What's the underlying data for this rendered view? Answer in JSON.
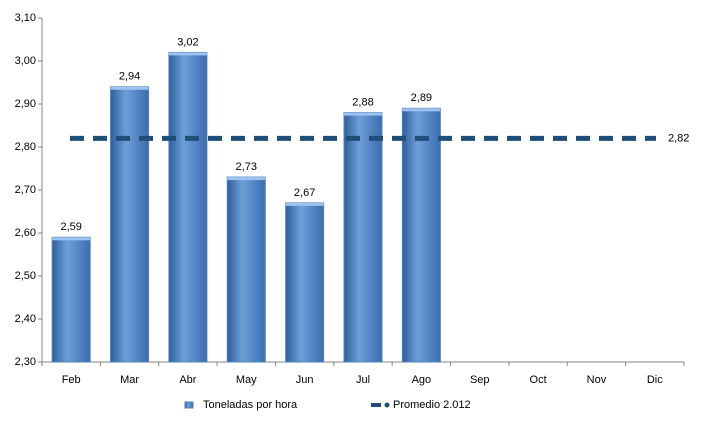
{
  "chart_data": {
    "type": "bar",
    "categories": [
      "Feb",
      "Mar",
      "Abr",
      "May",
      "Jun",
      "Jul",
      "Ago",
      "Sep",
      "Oct",
      "Nov",
      "Dic"
    ],
    "series": [
      {
        "name": "Toneladas por hora",
        "type": "bar",
        "color": "#4f81bd",
        "values": [
          2.59,
          2.94,
          3.02,
          2.73,
          2.67,
          2.88,
          2.89,
          null,
          null,
          null,
          null
        ],
        "value_labels": [
          "2,59",
          "2,94",
          "3,02",
          "2,73",
          "2,67",
          "2,88",
          "2,89",
          null,
          null,
          null,
          null
        ]
      },
      {
        "name": "Promedio 2.012",
        "type": "line",
        "color": "#1f4e79",
        "values": [
          2.82,
          2.82,
          2.82,
          2.82,
          2.82,
          2.82,
          2.82,
          2.82,
          2.82,
          2.82,
          2.82
        ],
        "value_labels": [
          null,
          null,
          null,
          null,
          null,
          null,
          null,
          null,
          null,
          null,
          "2,82"
        ]
      }
    ],
    "ylim": [
      2.3,
      3.1
    ],
    "yticks": [
      {
        "value": 2.3,
        "label": "2,30"
      },
      {
        "value": 2.4,
        "label": "2,40"
      },
      {
        "value": 2.5,
        "label": "2,50"
      },
      {
        "value": 2.6,
        "label": "2,60"
      },
      {
        "value": 2.7,
        "label": "2,70"
      },
      {
        "value": 2.8,
        "label": "2,80"
      },
      {
        "value": 2.9,
        "label": "2,90"
      },
      {
        "value": 3.0,
        "label": "3,00"
      },
      {
        "value": 3.1,
        "label": "3,10"
      }
    ],
    "grid": false,
    "legend": "bottom"
  }
}
